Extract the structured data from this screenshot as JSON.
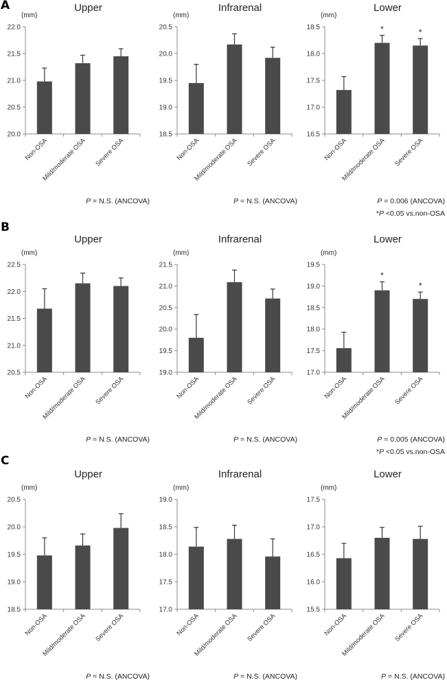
{
  "panels": [
    {
      "letter": "A"
    },
    {
      "letter": "B"
    },
    {
      "letter": "C"
    }
  ],
  "chart_data": [
    {
      "type": "bar",
      "panel": "A",
      "title": "Upper",
      "ylabel": "(mm)",
      "categories": [
        "Non-OSA",
        "Mild/moderate OSA",
        "Severe OSA"
      ],
      "values": [
        20.98,
        21.32,
        21.45
      ],
      "error_upper": [
        21.23,
        21.47,
        21.59
      ],
      "ylim": [
        20.0,
        22.0
      ],
      "yticks": [
        "20.0",
        "20.5",
        "21.0",
        "21.5",
        "22.0"
      ],
      "significant": [
        false,
        false,
        false
      ],
      "annotations": [
        "P = N.S. (ANCOVA)"
      ]
    },
    {
      "type": "bar",
      "panel": "A",
      "title": "Infrarenal",
      "ylabel": "(mm)",
      "categories": [
        "Non-OSA",
        "Mild/moderate OSA",
        "Severe OSA"
      ],
      "values": [
        19.45,
        20.17,
        19.92
      ],
      "error_upper": [
        19.8,
        20.37,
        20.12
      ],
      "ylim": [
        18.5,
        20.5
      ],
      "yticks": [
        "18.5",
        "19.0",
        "19.5",
        "20.0",
        "20.5"
      ],
      "significant": [
        false,
        false,
        false
      ],
      "annotations": [
        "P = N.S. (ANCOVA)"
      ]
    },
    {
      "type": "bar",
      "panel": "A",
      "title": "Lower",
      "ylabel": "(mm)",
      "categories": [
        "Non-OSA",
        "Mild/moderate OSA",
        "Severe OSA"
      ],
      "values": [
        17.32,
        18.2,
        18.15
      ],
      "error_upper": [
        17.57,
        18.34,
        18.28
      ],
      "ylim": [
        16.5,
        18.5
      ],
      "yticks": [
        "16.5",
        "17.0",
        "17.5",
        "18.0",
        "18.5"
      ],
      "significant": [
        false,
        true,
        true
      ],
      "annotations": [
        "P = 0.006 (ANCOVA)",
        "*P <0.05 vs.non-OSA"
      ]
    },
    {
      "type": "bar",
      "panel": "B",
      "title": "Upper",
      "ylabel": "(mm)",
      "categories": [
        "Non-OSA",
        "Mild/moderate OSA",
        "Severe OSA"
      ],
      "values": [
        21.68,
        22.15,
        22.1
      ],
      "error_upper": [
        22.05,
        22.34,
        22.25
      ],
      "ylim": [
        20.5,
        22.5
      ],
      "yticks": [
        "20.5",
        "21.0",
        "21.5",
        "22.0",
        "22.5"
      ],
      "significant": [
        false,
        false,
        false
      ],
      "annotations": [
        "P = N.S. (ANCOVA)"
      ]
    },
    {
      "type": "bar",
      "panel": "B",
      "title": "Infrarenal",
      "ylabel": "(mm)",
      "categories": [
        "Non-OSA",
        "Mild/moderate OSA",
        "Severe OSA"
      ],
      "values": [
        19.8,
        21.09,
        20.71
      ],
      "error_upper": [
        20.34,
        21.37,
        20.93
      ],
      "ylim": [
        19.0,
        21.5
      ],
      "yticks": [
        "19.0",
        "19.5",
        "20.0",
        "20.5",
        "21.0",
        "21.5"
      ],
      "significant": [
        false,
        false,
        false
      ],
      "annotations": [
        "P = N.S. (ANCOVA)"
      ]
    },
    {
      "type": "bar",
      "panel": "B",
      "title": "Lower",
      "ylabel": "(mm)",
      "categories": [
        "Non-OSA",
        "Mild/moderate OSA",
        "Severe OSA"
      ],
      "values": [
        17.56,
        18.9,
        18.7
      ],
      "error_upper": [
        17.93,
        19.1,
        18.86
      ],
      "ylim": [
        17.0,
        19.5
      ],
      "yticks": [
        "17.0",
        "17.5",
        "18.0",
        "18.5",
        "19.0",
        "19.5"
      ],
      "significant": [
        false,
        true,
        true
      ],
      "annotations": [
        "P = 0.005 (ANCOVA)",
        "*P <0.05 vs.non-OSA"
      ]
    },
    {
      "type": "bar",
      "panel": "C",
      "title": "Upper",
      "ylabel": "(mm)",
      "categories": [
        "Non-OSA",
        "Mild/moderate OSA",
        "Severe OSA"
      ],
      "values": [
        19.48,
        19.66,
        19.98
      ],
      "error_upper": [
        19.8,
        19.87,
        20.24
      ],
      "ylim": [
        18.5,
        20.5
      ],
      "yticks": [
        "18.5",
        "19.0",
        "19.5",
        "20.0",
        "20.5"
      ],
      "significant": [
        false,
        false,
        false
      ],
      "annotations": [
        "P = N.S. (ANCOVA)"
      ]
    },
    {
      "type": "bar",
      "panel": "C",
      "title": "Infrarenal",
      "ylabel": "(mm)",
      "categories": [
        "Non-OSA",
        "Mild/moderate OSA",
        "Severe OSA"
      ],
      "values": [
        18.14,
        18.28,
        17.96
      ],
      "error_upper": [
        18.49,
        18.53,
        18.28
      ],
      "ylim": [
        17.0,
        19.0
      ],
      "yticks": [
        "17.0",
        "17.5",
        "18.0",
        "18.5",
        "19.0"
      ],
      "significant": [
        false,
        false,
        false
      ],
      "annotations": [
        "P = N.S. (ANCOVA)"
      ]
    },
    {
      "type": "bar",
      "panel": "C",
      "title": "Lower",
      "ylabel": "(mm)",
      "categories": [
        "Non-OSA",
        "Mild/moderate OSA",
        "Severe OSA"
      ],
      "values": [
        16.43,
        16.8,
        16.78
      ],
      "error_upper": [
        16.7,
        16.99,
        17.01
      ],
      "ylim": [
        15.5,
        17.5
      ],
      "yticks": [
        "15.5",
        "16.0",
        "16.5",
        "17.0",
        "17.5"
      ],
      "significant": [
        false,
        false,
        false
      ],
      "annotations": [
        "P = N.S. (ANCOVA)"
      ]
    }
  ],
  "style": {
    "bar_color": "#4a4a4a",
    "axis_color": "#888888"
  }
}
